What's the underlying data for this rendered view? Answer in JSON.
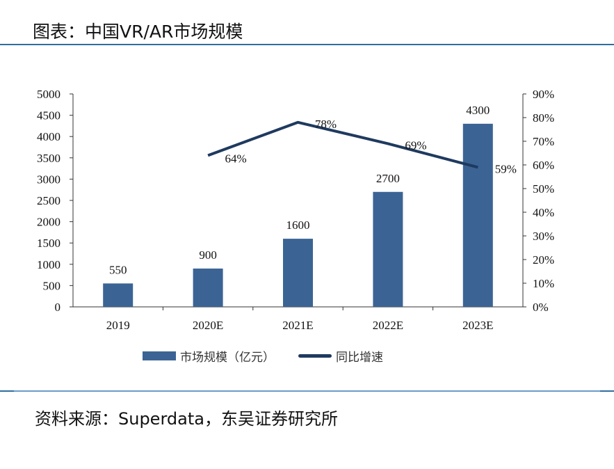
{
  "title": "图表：中国VR/AR市场规模",
  "source": "资料来源：Superdata，东吴证券研究所",
  "colors": {
    "bar": "#3b6494",
    "line": "#1f3a5f"
  },
  "chart_data": {
    "type": "bar+line",
    "categories": [
      "2019",
      "2020E",
      "2021E",
      "2022E",
      "2023E"
    ],
    "series": [
      {
        "name": "市场规模（亿元）",
        "type": "bar",
        "axis": "left",
        "values": [
          550,
          900,
          1600,
          2700,
          4300
        ],
        "labels": [
          "550",
          "900",
          "1600",
          "2700",
          "4300"
        ]
      },
      {
        "name": "同比增速",
        "type": "line",
        "axis": "right",
        "values": [
          null,
          64,
          78,
          69,
          59
        ],
        "labels": [
          "",
          "64%",
          "78%",
          "69%",
          "59%"
        ]
      }
    ],
    "y_left": {
      "range": [
        0,
        5000
      ],
      "ticks": [
        "0",
        "500",
        "1000",
        "1500",
        "2000",
        "2500",
        "3000",
        "3500",
        "4000",
        "4500",
        "5000"
      ]
    },
    "y_right": {
      "range": [
        0,
        90
      ],
      "ticks": [
        "0%",
        "10%",
        "20%",
        "30%",
        "40%",
        "50%",
        "60%",
        "70%",
        "80%",
        "90%"
      ]
    },
    "grid": false,
    "legend": "bottom"
  }
}
